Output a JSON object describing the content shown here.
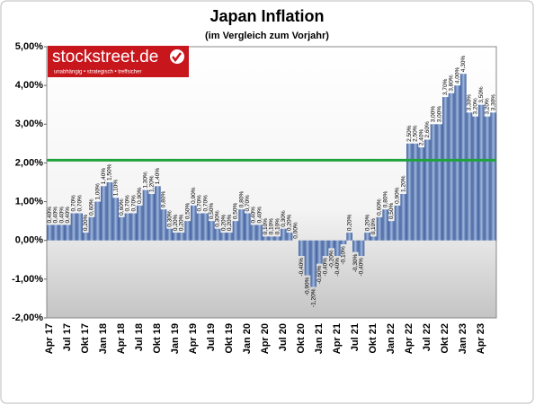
{
  "chart_data": {
    "type": "bar",
    "title": "Japan Inflation",
    "subtitle": "(im Vergleich zum Vorjahr)",
    "logo": {
      "name": "stockstreet.de",
      "tagline": "unabhängig • strategisch • treffsicher"
    },
    "categories": [
      "Apr 17",
      null,
      null,
      "Jul 17",
      null,
      null,
      "Okt 17",
      null,
      null,
      "Jan 18",
      null,
      null,
      "Apr 18",
      null,
      null,
      "Jul 18",
      null,
      null,
      "Okt 18",
      null,
      null,
      "Jan 19",
      null,
      null,
      "Apr 19",
      null,
      null,
      "Jul 19",
      null,
      null,
      "Okt 19",
      null,
      null,
      "Jan 20",
      null,
      null,
      "Apr 20",
      null,
      null,
      "Jul 20",
      null,
      null,
      "Okt 20",
      null,
      null,
      "Jan 21",
      null,
      null,
      "Apr 21",
      null,
      null,
      "Jul 21",
      null,
      null,
      "Okt 21",
      null,
      null,
      "Jan 22",
      null,
      null,
      "Apr 22",
      null,
      null,
      "Jul 22",
      null,
      null,
      "Okt 22",
      null,
      null,
      "Jan 23",
      null,
      null,
      "Apr 23",
      null,
      null
    ],
    "values": [
      0.4,
      0.4,
      0.4,
      0.4,
      0.7,
      0.7,
      0.2,
      0.6,
      1.0,
      1.4,
      1.5,
      1.1,
      0.6,
      0.7,
      0.7,
      0.9,
      1.3,
      1.2,
      1.4,
      0.8,
      0.3,
      0.2,
      0.2,
      0.5,
      0.9,
      0.7,
      0.7,
      0.5,
      0.3,
      0.2,
      0.2,
      0.5,
      0.8,
      0.7,
      0.4,
      0.4,
      0.1,
      0.1,
      0.1,
      0.3,
      0.2,
      0.0,
      -0.4,
      -0.9,
      -1.2,
      -0.6,
      -0.4,
      -0.2,
      -0.4,
      -0.1,
      0.2,
      -0.3,
      -0.4,
      0.2,
      0.1,
      0.6,
      0.8,
      0.5,
      0.9,
      1.2,
      2.5,
      2.5,
      2.4,
      2.6,
      3.0,
      3.0,
      3.7,
      3.8,
      4.0,
      4.3,
      3.3,
      3.2,
      3.5,
      3.2,
      3.3
    ],
    "value_labels": [
      "0,40%",
      "0,40%",
      "0,40%",
      "0,40%",
      "0,70%",
      "0,70%",
      "0,20%",
      "0,60%",
      "1,00%",
      "1,40%",
      "1,50%",
      "1,10%",
      "0,60%",
      "0,70%",
      "0,70%",
      "0,90%",
      "1,30%",
      "1,20%",
      "1,40%",
      "0,80%",
      "0,30%",
      "0,20%",
      "0,20%",
      "0,50%",
      "0,90%",
      "0,70%",
      "0,70%",
      "0,50%",
      "0,30%",
      "0,20%",
      "0,20%",
      "0,50%",
      "0,80%",
      "0,70%",
      "0,40%",
      "0,40%",
      "0,10%",
      "0,10%",
      "0,10%",
      "0,30%",
      "0,20%",
      "0,00%",
      "-0,40%",
      "-0,90%",
      "-1,20%",
      "-0,60%",
      "-0,40%",
      "-0,20%",
      "-0,40%",
      "-0,10%",
      "0,20%",
      "-0,30%",
      "-0,40%",
      "0,20%",
      "0,10%",
      "0,60%",
      "0,80%",
      "0,50%",
      "0,90%",
      "1,20%",
      "2,50%",
      "2,50%",
      "2,40%",
      "2,60%",
      "3,00%",
      "3,00%",
      "3,70%",
      "3,80%",
      "4,00%",
      "4,30%",
      "3,30%",
      "3,20%",
      "3,50%",
      "3,20%",
      "3,30%"
    ],
    "color": "#3f5f9e",
    "ylim": [
      -2,
      5
    ],
    "yticks": [
      {
        "value": -2,
        "label": "-2,00%"
      },
      {
        "value": -1,
        "label": "-1,00%"
      },
      {
        "value": 0,
        "label": "0,00%"
      },
      {
        "value": 1,
        "label": "1,00%"
      },
      {
        "value": 2,
        "label": "2,00%"
      },
      {
        "value": 3,
        "label": "3,00%"
      },
      {
        "value": 4,
        "label": "4,00%"
      },
      {
        "value": 5,
        "label": "5,00%"
      }
    ],
    "reference_line": {
      "value": 2.07,
      "color": "#1fa33c"
    }
  }
}
